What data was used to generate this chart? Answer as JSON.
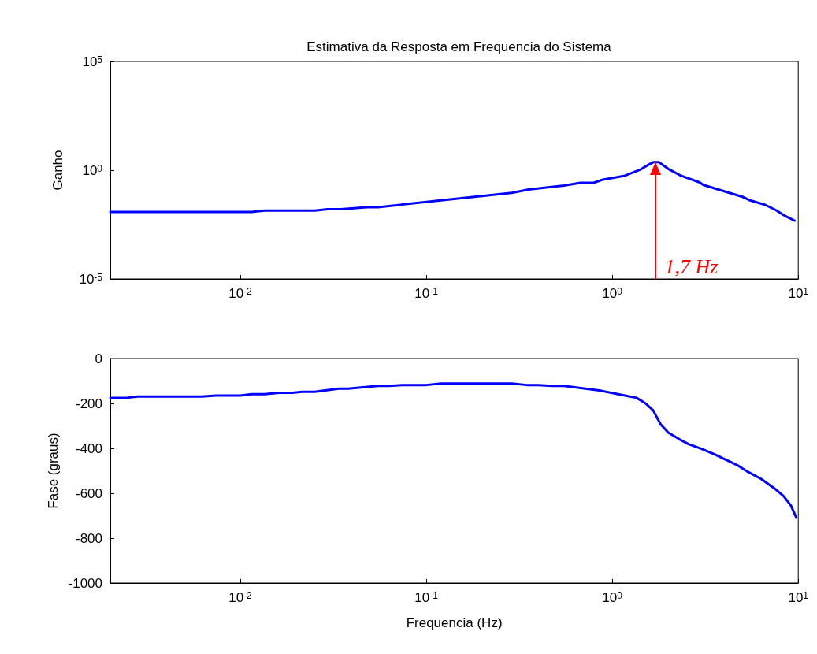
{
  "chart_data": [
    {
      "type": "line",
      "title": "Estimativa da Resposta em Frequencia do Sistema",
      "ylabel": "Ganho",
      "log": "xy",
      "x": [
        0.002,
        0.0115,
        0.0135,
        0.0251,
        0.0295,
        0.0347,
        0.0479,
        0.055,
        0.12,
        0.288,
        0.355,
        0.55,
        0.676,
        0.794,
        0.891,
        1.02,
        1.17,
        1.41,
        1.55,
        1.66,
        1.78,
        2.0,
        2.34,
        2.95,
        3.09,
        5.01,
        5.5,
        6.61,
        7.59,
        8.51,
        9.55
      ],
      "series": [
        {
          "color": "#0000ff",
          "values": [
            0.012,
            0.012,
            0.014,
            0.014,
            0.016,
            0.016,
            0.02,
            0.02,
            0.041,
            0.091,
            0.129,
            0.195,
            0.263,
            0.263,
            0.37,
            0.45,
            0.56,
            1.05,
            1.7,
            2.34,
            2.34,
            1.15,
            0.56,
            0.275,
            0.209,
            0.06,
            0.041,
            0.026,
            0.0145,
            0.0078,
            0.0048
          ]
        }
      ],
      "xlim": [
        0.002,
        10
      ],
      "xticks": [
        {
          "value": 0.01,
          "label": "10$^{-2}$"
        },
        {
          "value": 0.1,
          "label": "10$^{-1}$"
        },
        {
          "value": 1,
          "label": "10$^{0}$"
        },
        {
          "value": 10,
          "label": "10$^{1}$"
        }
      ],
      "ylim": [
        1e-05,
        100000
      ],
      "yticks": [
        {
          "value": 1e-05,
          "label": "10$^{-5}$"
        },
        {
          "value": 1,
          "label": "10$^{0}$"
        },
        {
          "value": 100000,
          "label": "10$^{5}$"
        }
      ],
      "annotations": [
        {
          "text": "1,7 Hz",
          "x": 1.7,
          "y": 2.34
        }
      ],
      "grid": false,
      "marker": "none",
      "line_style": "solid"
    },
    {
      "type": "line",
      "ylabel": "Fase (graus)",
      "xlabel": "Frequencia (Hz)",
      "log": "x",
      "x": [
        0.002,
        0.00245,
        0.0028,
        0.0062,
        0.0074,
        0.01,
        0.0115,
        0.0135,
        0.0162,
        0.0191,
        0.0214,
        0.0251,
        0.0339,
        0.038,
        0.055,
        0.0631,
        0.0741,
        0.1,
        0.12,
        0.288,
        0.347,
        0.4,
        0.479,
        0.55,
        0.851,
        1.17,
        1.35,
        1.51,
        1.66,
        1.82,
        2.0,
        2.29,
        2.57,
        3.02,
        3.55,
        4.68,
        5.37,
        6.31,
        7.41,
        8.32,
        9.12,
        9.77
      ],
      "series": [
        {
          "color": "#0000ff",
          "values": [
            -175,
            -175,
            -169,
            -169,
            -165,
            -165,
            -159,
            -159,
            -153,
            -153,
            -148,
            -148,
            -134,
            -134,
            -122,
            -122,
            -118,
            -118,
            -111,
            -111,
            -118,
            -118,
            -122,
            -122,
            -142,
            -165,
            -175,
            -200,
            -231,
            -293,
            -330,
            -359,
            -381,
            -402,
            -427,
            -474,
            -505,
            -536,
            -577,
            -612,
            -654,
            -709
          ]
        }
      ],
      "xlim": [
        0.002,
        10
      ],
      "xticks": [
        {
          "value": 0.01,
          "label": "10$^{-2}$"
        },
        {
          "value": 0.1,
          "label": "10$^{-1}$"
        },
        {
          "value": 1,
          "label": "10$^{0}$"
        },
        {
          "value": 10,
          "label": "10$^{1}$"
        }
      ],
      "ylim": [
        -1000,
        0
      ],
      "yticks": [
        -1000,
        -800,
        -600,
        -400,
        -200,
        0
      ],
      "grid": false,
      "marker": "none",
      "line_style": "solid"
    }
  ]
}
